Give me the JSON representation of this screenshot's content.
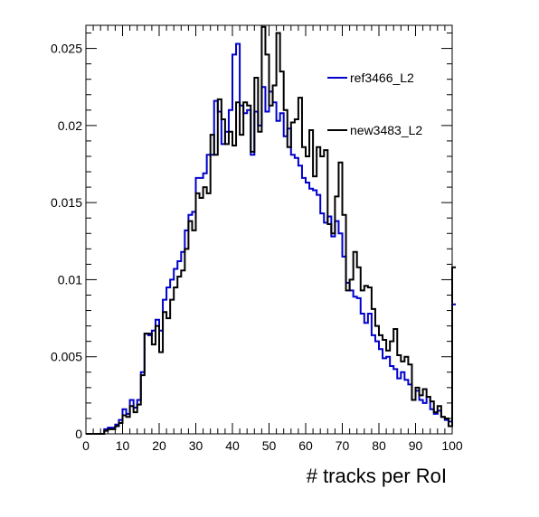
{
  "chart_data": {
    "type": "histogram",
    "xlabel": "# tracks per RoI",
    "ylabel": "",
    "xlim": [
      0,
      100
    ],
    "ylim": [
      0,
      0.0265
    ],
    "bin_width": 1,
    "x_ticks": [
      0,
      10,
      20,
      30,
      40,
      50,
      60,
      70,
      80,
      90,
      100
    ],
    "y_ticks": [
      0,
      0.005,
      0.01,
      0.015,
      0.02,
      0.025
    ],
    "y_tick_labels": [
      "0",
      "0.005",
      "0.01",
      "0.015",
      "0.02",
      "0.025"
    ],
    "legend_position": "top-right",
    "series": [
      {
        "name": "ref3466_L2",
        "color": "#0000cc",
        "values": [
          0,
          0,
          0,
          0,
          0,
          0.0003,
          0.0004,
          0.0004,
          0.0006,
          0.0009,
          0.0016,
          0.0013,
          0.0022,
          0.0017,
          0.0022,
          0.004,
          0.0065,
          0.0064,
          0.0067,
          0.0074,
          0.0067,
          0.0087,
          0.0095,
          0.01,
          0.0107,
          0.0112,
          0.0118,
          0.0132,
          0.0142,
          0.0144,
          0.0166,
          0.0166,
          0.0169,
          0.0181,
          0.0181,
          0.0216,
          0.0209,
          0.0188,
          0.0196,
          0.021,
          0.0246,
          0.0253,
          0.0213,
          0.0208,
          0.021,
          0.0181,
          0.0209,
          0.02,
          0.0225,
          0.0209,
          0.0222,
          0.0215,
          0.0203,
          0.0208,
          0.0193,
          0.0198,
          0.0181,
          0.0179,
          0.0174,
          0.0166,
          0.0163,
          0.0159,
          0.0158,
          0.0155,
          0.0143,
          0.0137,
          0.0141,
          0.0128,
          0.0138,
          0.013,
          0.0115,
          0.0098,
          0.0093,
          0.0089,
          0.0088,
          0.0078,
          0.0072,
          0.0078,
          0.0064,
          0.006,
          0.0055,
          0.0049,
          0.005,
          0.0044,
          0.0042,
          0.0036,
          0.004,
          0.0035,
          0.0032,
          0.0022,
          0.0028,
          0.0022,
          0.002,
          0.0024,
          0.0016,
          0.0013,
          0.0015,
          0.0011,
          0.0009,
          0.0008,
          0.0084
        ]
      },
      {
        "name": "new3483_L2",
        "color": "#000000",
        "values": [
          0,
          0,
          0,
          0,
          0,
          0.0002,
          0.0003,
          0.0003,
          0.0005,
          0.0007,
          0.0012,
          0.0011,
          0.0018,
          0.0014,
          0.0019,
          0.0038,
          0.0065,
          0.0065,
          0.0058,
          0.007,
          0.0053,
          0.0079,
          0.0075,
          0.0087,
          0.0095,
          0.0102,
          0.0106,
          0.012,
          0.0138,
          0.0132,
          0.0156,
          0.0153,
          0.016,
          0.0156,
          0.0194,
          0.0181,
          0.0217,
          0.0204,
          0.0188,
          0.0196,
          0.0187,
          0.0215,
          0.0194,
          0.0215,
          0.0213,
          0.0183,
          0.0231,
          0.0196,
          0.0264,
          0.0246,
          0.0213,
          0.0226,
          0.026,
          0.0235,
          0.021,
          0.0186,
          0.0202,
          0.0204,
          0.0218,
          0.0186,
          0.018,
          0.0197,
          0.0167,
          0.0186,
          0.018,
          0.0184,
          0.0136,
          0.013,
          0.0154,
          0.0176,
          0.0142,
          0.0093,
          0.01,
          0.0118,
          0.0108,
          0.0093,
          0.0096,
          0.0095,
          0.0081,
          0.007,
          0.0064,
          0.0061,
          0.0054,
          0.006,
          0.0068,
          0.0051,
          0.0047,
          0.005,
          0.0045,
          0.0022,
          0.003,
          0.0025,
          0.0029,
          0.0024,
          0.0021,
          0.0014,
          0.0018,
          0.0011,
          0.001,
          0.0005,
          0.0108
        ]
      }
    ]
  }
}
